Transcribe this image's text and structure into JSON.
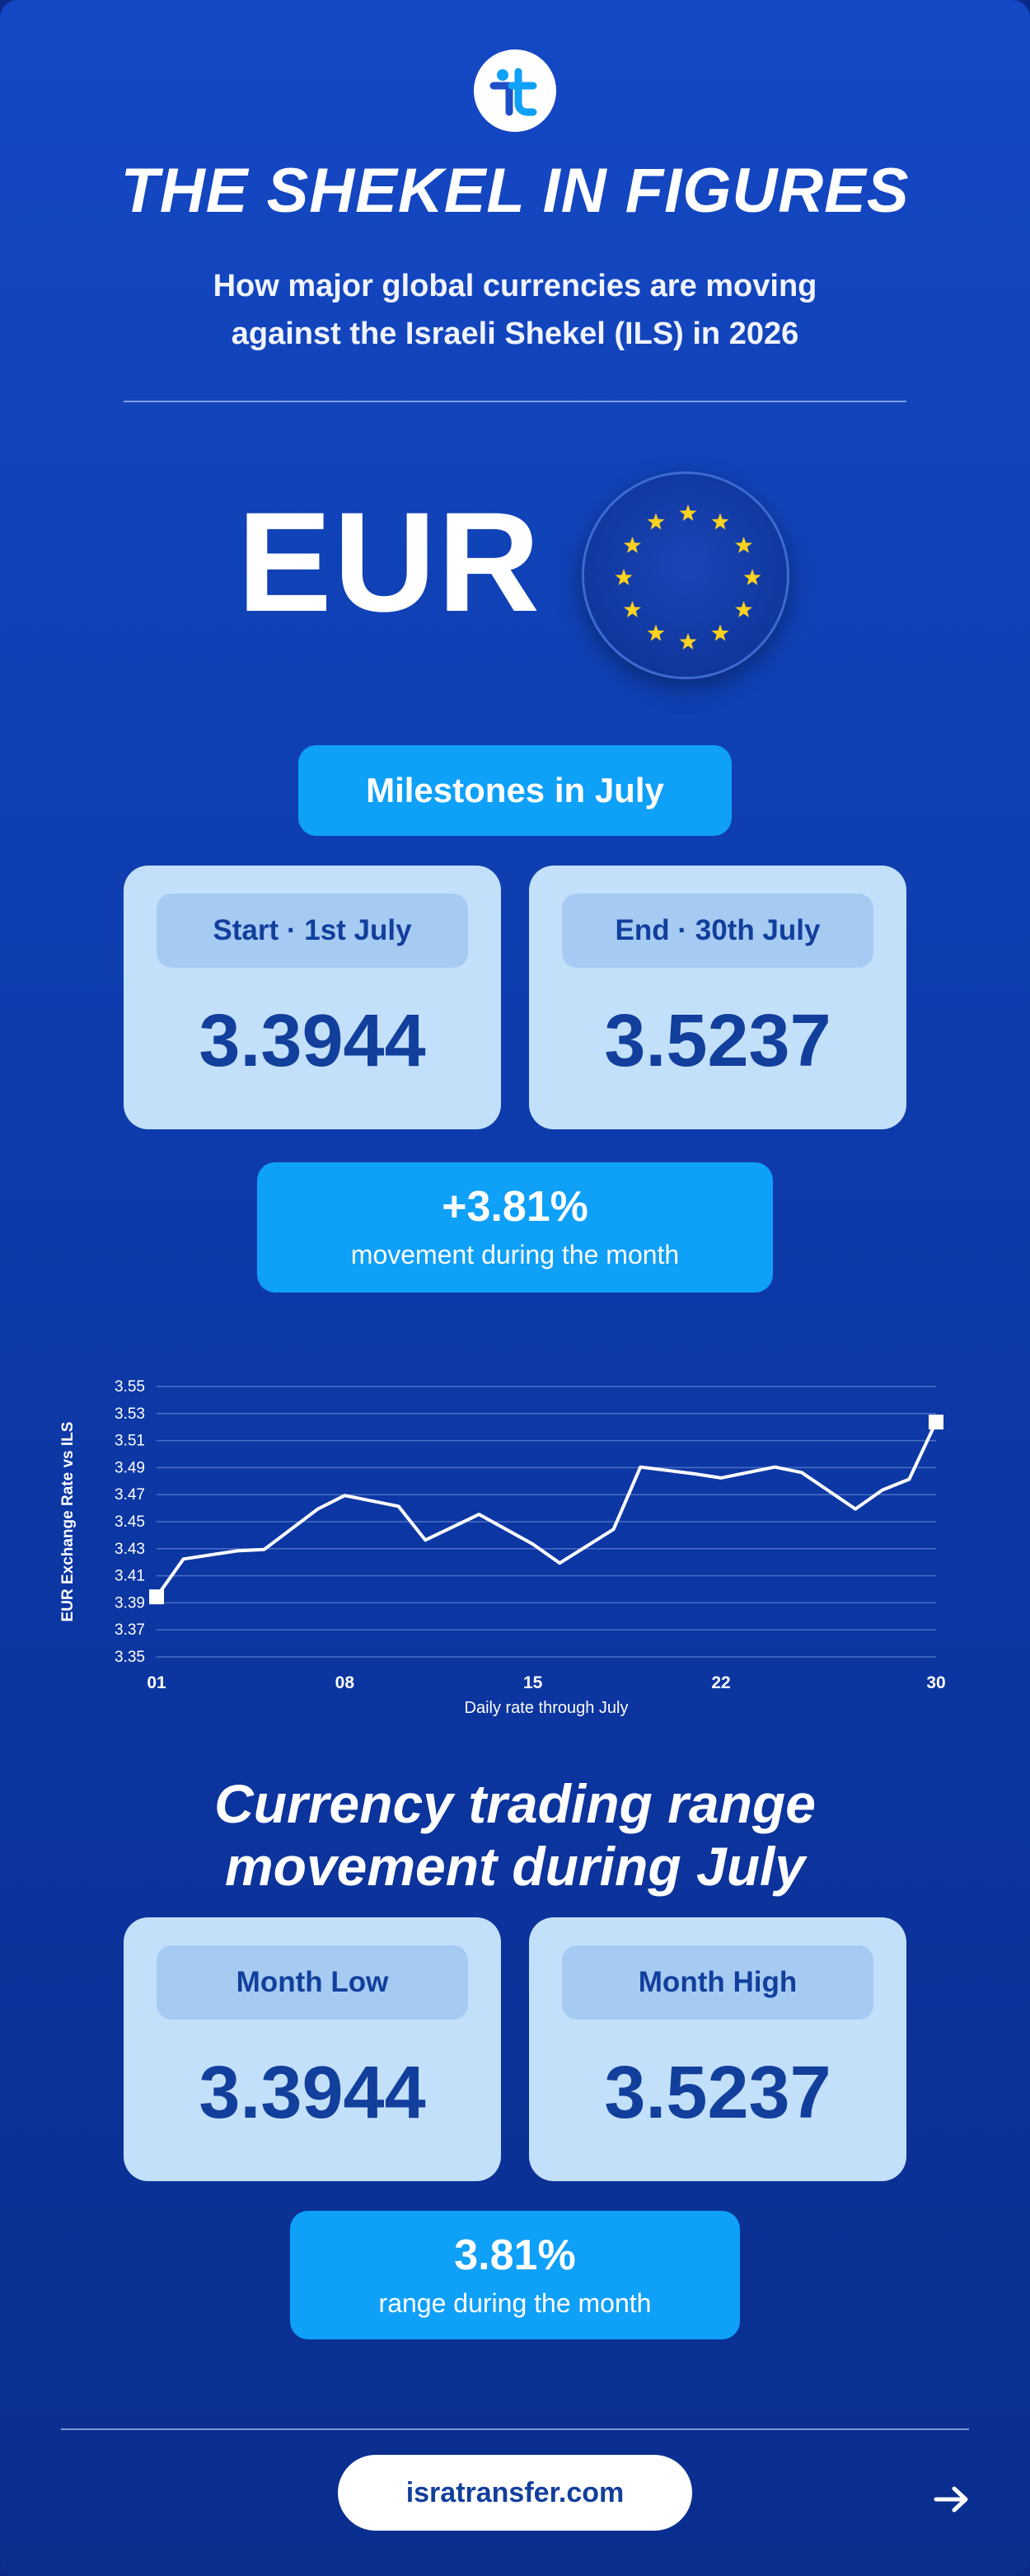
{
  "header": {
    "logo": "isratransfer-logo",
    "title": "THE SHEKEL IN FIGURES",
    "subtitle_line1": "How major global currencies are moving",
    "subtitle_line2": "against the Israeli Shekel (ILS) in 2026"
  },
  "currency": {
    "code": "EUR",
    "flag_icon": "eu-flag-icon"
  },
  "milestones": {
    "title": "Milestones in July",
    "start_label": "Start · 1st July",
    "start_value": "3.3944",
    "end_label": "End · 30th July",
    "end_value": "3.5237",
    "movement_value": "+3.81%",
    "movement_label": "movement during the month"
  },
  "chart_data": {
    "type": "line",
    "xlabel": "Daily rate through July",
    "ylabel": "EUR Exchange Rate vs ILS",
    "ylim": [
      3.35,
      3.55
    ],
    "yticks": [
      "3.35",
      "3.37",
      "3.39",
      "3.41",
      "3.43",
      "3.45",
      "3.47",
      "3.49",
      "3.51",
      "3.53",
      "3.55"
    ],
    "xticks": [
      {
        "day": 1,
        "label": "01"
      },
      {
        "day": 8,
        "label": "08"
      },
      {
        "day": 15,
        "label": "15"
      },
      {
        "day": 22,
        "label": "22"
      },
      {
        "day": 30,
        "label": "30"
      }
    ],
    "series": [
      {
        "x": [
          1,
          2,
          4,
          5,
          7,
          8,
          10,
          11,
          13,
          15,
          16,
          18,
          19,
          21,
          22,
          24,
          25,
          27,
          28,
          29,
          30
        ],
        "values": [
          3.3944,
          3.4224,
          3.4284,
          3.4294,
          3.4594,
          3.4694,
          3.4614,
          3.4364,
          3.4554,
          3.4334,
          3.4194,
          3.4444,
          3.4904,
          3.4854,
          3.4824,
          3.4904,
          3.4864,
          3.4594,
          3.4734,
          3.4814,
          3.5237
        ]
      }
    ],
    "grid": true,
    "color": "#ffffff"
  },
  "range": {
    "title_line1": "Currency trading range",
    "title_line2": "movement during July",
    "low_label": "Month Low",
    "low_value": "3.3944",
    "high_label": "Month High",
    "high_value": "3.5237",
    "range_value": "3.81%",
    "range_label": "range during the month"
  },
  "footer": {
    "website": "isratransfer.com",
    "arrow_icon": "arrow-right-icon"
  },
  "colors": {
    "background": "#0f3fb2",
    "accent": "#0fa0f8",
    "card": "#c3e0fb",
    "card_text": "#123f9c"
  }
}
